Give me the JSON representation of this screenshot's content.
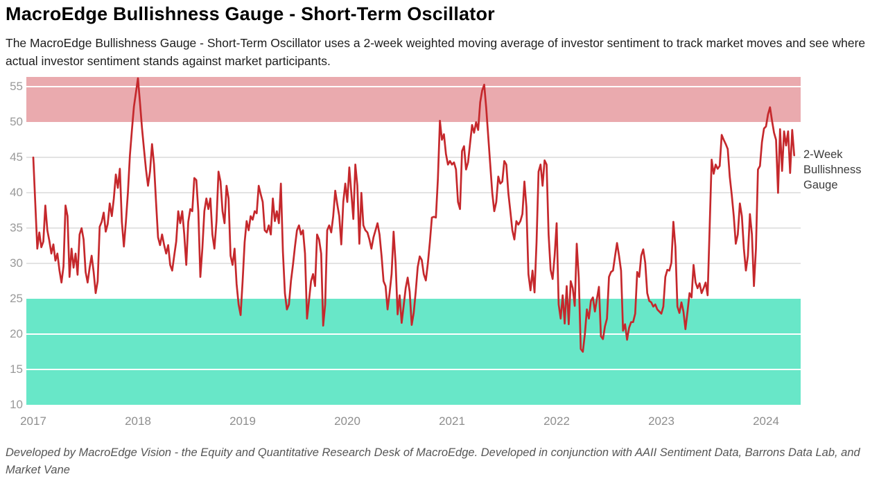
{
  "header": {
    "title": "MacroEdge Bullishness Gauge - Short-Term Oscillator",
    "subtitle": "The MacroEdge Bullishness Gauge - Short-Term Oscillator uses a 2-week weighted moving average of investor sentiment to track market moves and see where actual investor sentiment stands against market participants."
  },
  "footer": {
    "credit": "Developed by MacroEdge Vision - the Equity and Quantitative Research Desk of MacroEdge. Developed in conjunction with AAII Sentiment Data, Barrons Data Lab, and Market Vane"
  },
  "colors": {
    "line": "#c5282c",
    "overbought_band": "#eaaaae",
    "oversold_band": "#68e7c8",
    "grid_gray": "#e3e3e3",
    "grid_white": "#ffffff",
    "axis_text": "#999999",
    "annotation_text": "#3c3c3c"
  },
  "chart_data": {
    "type": "line",
    "title": "MacroEdge Bullishness Gauge - Short-Term Oscillator",
    "annotation": "2-Week Bullishness Gauge",
    "legend_position": "right-of-plot",
    "grid": true,
    "xlabel": "",
    "ylabel": "",
    "ylim": [
      10,
      56.4
    ],
    "x_tick_labels": [
      "2017",
      "2018",
      "2019",
      "2020",
      "2021",
      "2022",
      "2023",
      "2024"
    ],
    "yticks": [
      {
        "value": 55,
        "line": "white"
      },
      {
        "value": 50,
        "line": "none"
      },
      {
        "value": 45,
        "line": "gray"
      },
      {
        "value": 40,
        "line": "gray"
      },
      {
        "value": 35,
        "line": "gray"
      },
      {
        "value": 30,
        "line": "gray"
      },
      {
        "value": 25,
        "line": "none"
      },
      {
        "value": 20,
        "line": "white"
      },
      {
        "value": 15,
        "line": "white"
      },
      {
        "value": 10,
        "line": "none"
      }
    ],
    "bands": [
      {
        "name": "overbought",
        "from": 50,
        "to": 56.4,
        "color": "#eaaaae"
      },
      {
        "name": "oversold",
        "from": 10,
        "to": 25,
        "color": "#68e7c8"
      }
    ],
    "x_start_year": 2017,
    "points_per_year": 52,
    "series": [
      {
        "name": "2-Week Bullishness Gauge",
        "color": "#c5282c",
        "values": [
          45.0,
          38.5,
          32.1,
          34.4,
          32.3,
          33.1,
          38.2,
          34.7,
          33.2,
          31.4,
          32.7,
          30.4,
          31.4,
          29.0,
          27.3,
          29.6,
          38.2,
          36.7,
          28.1,
          32.1,
          29.4,
          31.4,
          28.4,
          34.1,
          35.0,
          33.4,
          28.8,
          27.3,
          29.4,
          31.1,
          28.8,
          25.8,
          27.5,
          35.2,
          35.9,
          37.2,
          34.5,
          35.6,
          38.5,
          36.7,
          39.2,
          42.6,
          40.7,
          43.4,
          35.9,
          32.4,
          35.9,
          40.0,
          45.3,
          48.9,
          52.2,
          54.2,
          56.2,
          52.8,
          49.2,
          46.2,
          43.3,
          41.0,
          43.0,
          46.9,
          44.0,
          38.7,
          33.7,
          32.6,
          34.1,
          32.6,
          31.4,
          32.6,
          29.8,
          29.0,
          31.1,
          33.1,
          37.4,
          35.7,
          37.4,
          34.1,
          29.8,
          35.9,
          37.7,
          37.4,
          42.1,
          41.8,
          37.4,
          28.1,
          32.1,
          37.4,
          39.2,
          37.7,
          39.2,
          34.1,
          32.1,
          36.0,
          43.0,
          41.6,
          37.4,
          35.7,
          41.0,
          39.2,
          31.1,
          29.8,
          32.1,
          27.1,
          24.2,
          22.7,
          27.5,
          33.0,
          36.0,
          34.7,
          36.7,
          36.2,
          37.4,
          37.1,
          41.0,
          39.8,
          38.7,
          34.7,
          34.4,
          35.4,
          34.1,
          39.2,
          36.0,
          37.4,
          35.7,
          41.3,
          31.7,
          25.8,
          23.5,
          24.2,
          27.5,
          29.8,
          32.4,
          34.7,
          35.4,
          34.1,
          34.7,
          31.4,
          22.2,
          24.8,
          27.5,
          28.5,
          26.8,
          34.1,
          33.4,
          31.4,
          21.2,
          24.2,
          34.7,
          35.4,
          34.4,
          36.7,
          40.3,
          38.4,
          36.7,
          32.7,
          38.7,
          41.3,
          38.7,
          43.6,
          40.0,
          36.3,
          44.0,
          41.0,
          32.8,
          40.0,
          35.4,
          34.7,
          34.4,
          33.4,
          32.1,
          33.7,
          34.7,
          35.7,
          34.1,
          31.1,
          27.5,
          26.8,
          23.5,
          25.8,
          28.5,
          34.5,
          30.0,
          22.8,
          25.5,
          21.6,
          24.0,
          26.5,
          28.0,
          26.0,
          21.3,
          23.0,
          26.0,
          29.5,
          31.0,
          30.5,
          28.5,
          27.6,
          30.0,
          33.0,
          36.5,
          36.6,
          36.5,
          42.0,
          50.2,
          47.5,
          48.3,
          45.5,
          44.0,
          44.5,
          44.0,
          44.3,
          43.3,
          38.7,
          37.7,
          45.9,
          46.6,
          43.3,
          44.3,
          47.0,
          49.6,
          48.5,
          50.0,
          48.9,
          52.8,
          54.5,
          55.3,
          52.0,
          48.0,
          44.0,
          40.0,
          37.4,
          38.7,
          42.3,
          41.3,
          41.6,
          44.5,
          44.0,
          40.0,
          37.4,
          34.7,
          33.4,
          36.0,
          35.5,
          36.0,
          37.0,
          41.6,
          38.0,
          28.5,
          26.2,
          29.0,
          25.9,
          33.0,
          43.0,
          44.0,
          41.0,
          44.6,
          44.0,
          34.1,
          29.1,
          27.8,
          31.1,
          35.7,
          24.2,
          22.2,
          25.5,
          21.5,
          26.8,
          21.4,
          27.5,
          26.5,
          24.0,
          32.8,
          28.0,
          17.9,
          17.5,
          20.0,
          23.5,
          22.2,
          24.7,
          25.2,
          23.2,
          25.0,
          26.7,
          19.7,
          19.3,
          21.1,
          22.2,
          28.1,
          28.8,
          29.0,
          31.0,
          32.9,
          31.1,
          29.0,
          20.5,
          21.4,
          19.2,
          20.9,
          21.7,
          21.7,
          22.9,
          28.8,
          28.1,
          31.1,
          32.0,
          30.1,
          25.8,
          24.7,
          24.5,
          23.9,
          24.2,
          23.5,
          23.2,
          22.9,
          23.9,
          28.1,
          29.1,
          29.0,
          30.1,
          35.9,
          32.4,
          23.9,
          23.0,
          24.5,
          23.2,
          20.7,
          23.2,
          25.8,
          25.2,
          29.8,
          27.3,
          26.5,
          27.2,
          25.8,
          26.5,
          27.3,
          25.5,
          35.0,
          44.7,
          42.7,
          44.0,
          43.4,
          43.8,
          48.2,
          47.5,
          46.9,
          46.2,
          42.3,
          39.7,
          36.7,
          32.8,
          34.1,
          38.5,
          36.7,
          32.1,
          29.0,
          31.1,
          37.0,
          34.1,
          26.8,
          32.1,
          43.3,
          43.8,
          47.2,
          49.1,
          49.4,
          51.1,
          52.1,
          50.2,
          48.5,
          47.5,
          40.0,
          49.0,
          43.1,
          48.7,
          46.7,
          48.7,
          42.8,
          48.9,
          45.3
        ]
      }
    ]
  }
}
